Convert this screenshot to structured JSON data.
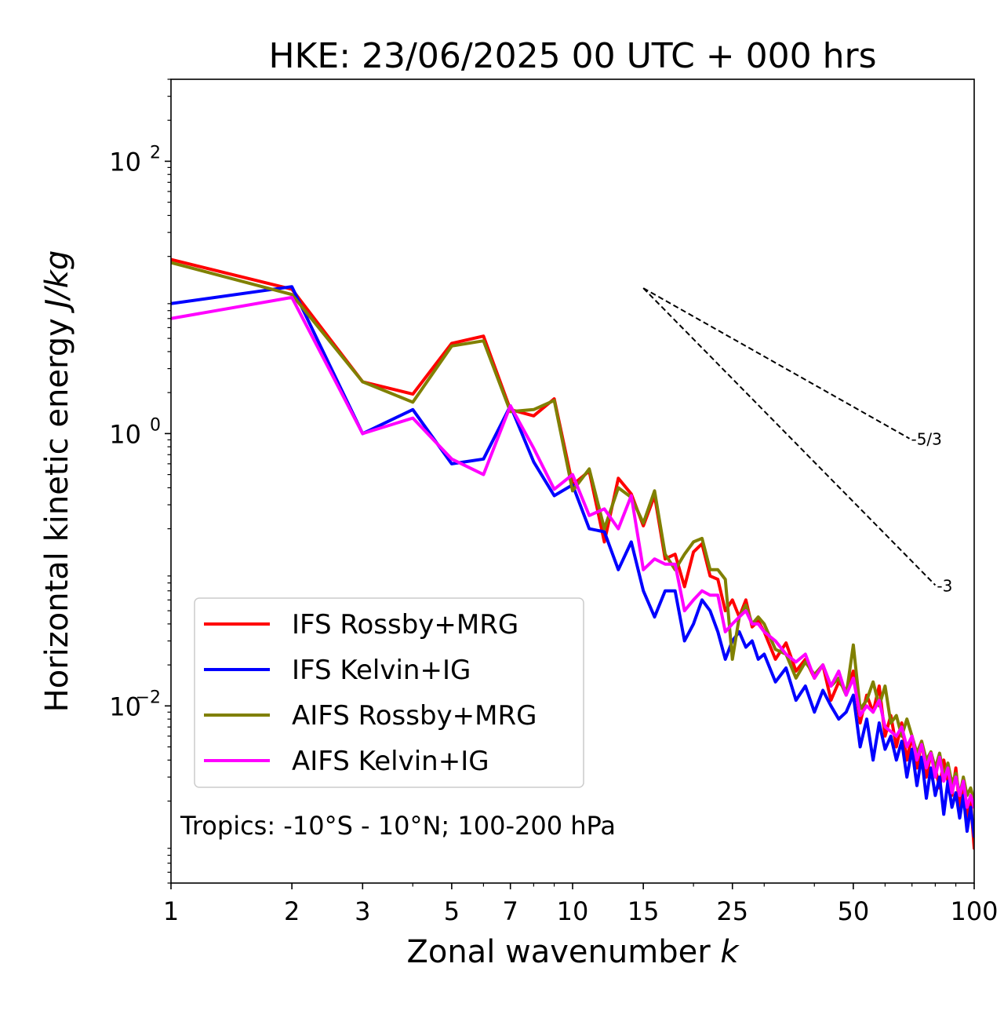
{
  "chart_data": {
    "type": "line",
    "title": "HKE: 23/06/2025 00 UTC + 000 hrs",
    "xlabel_main": "Zonal wavenumber ",
    "xlabel_var": "k",
    "ylabel_main": "Horizontal kinetic energy ",
    "ylabel_var": "J/kg",
    "x_scale": "log",
    "y_scale": "log",
    "xlim": [
      1,
      100
    ],
    "ylim": [
      0.0005,
      400
    ],
    "x_ticks": [
      {
        "value": 1,
        "label": "1"
      },
      {
        "value": 2,
        "label": "2"
      },
      {
        "value": 3,
        "label": "3"
      },
      {
        "value": 5,
        "label": "5"
      },
      {
        "value": 7,
        "label": "7"
      },
      {
        "value": 10,
        "label": "10"
      },
      {
        "value": 15,
        "label": "15"
      },
      {
        "value": 25,
        "label": "25"
      },
      {
        "value": 50,
        "label": "50"
      },
      {
        "value": 100,
        "label": "100"
      }
    ],
    "y_ticks": [
      {
        "value": 0.01,
        "base": "10",
        "exp": "−2"
      },
      {
        "value": 1,
        "base": "10",
        "exp": "0"
      },
      {
        "value": 100,
        "base": "10",
        "exp": "2"
      }
    ],
    "grid": false,
    "legend_position": "lower-left",
    "annotation": "Tropics: -10°S - 10°N; 100-200 hPa",
    "reference_slopes": [
      {
        "label": "-5/3",
        "slope": -1.6667,
        "x_start": 15,
        "y_start": 11.7,
        "x_end": 69
      },
      {
        "label": "-3",
        "slope": -3,
        "x_start": 15,
        "y_start": 11.7,
        "x_end": 80
      }
    ],
    "series": [
      {
        "name": "IFS Rossby+MRG",
        "color": "#ff0000",
        "x": [
          1,
          2,
          3,
          4,
          5,
          6,
          7,
          8,
          9,
          10,
          11,
          12,
          13,
          14,
          15,
          16,
          17,
          18,
          19,
          20,
          21,
          22,
          23,
          24,
          25,
          26,
          27,
          28,
          29,
          30,
          32,
          34,
          36,
          38,
          40,
          42,
          44,
          46,
          48,
          50,
          52,
          54,
          56,
          58,
          60,
          62,
          64,
          66,
          68,
          70,
          72,
          74,
          76,
          78,
          80,
          82,
          84,
          86,
          88,
          90,
          92,
          94,
          96,
          98,
          100
        ],
        "y": [
          19,
          11.5,
          2.4,
          1.95,
          4.6,
          5.2,
          1.5,
          1.35,
          1.8,
          0.42,
          0.53,
          0.16,
          0.47,
          0.36,
          0.21,
          0.35,
          0.12,
          0.13,
          0.075,
          0.135,
          0.155,
          0.09,
          0.085,
          0.05,
          0.06,
          0.045,
          0.06,
          0.038,
          0.042,
          0.035,
          0.022,
          0.029,
          0.018,
          0.022,
          0.016,
          0.02,
          0.011,
          0.015,
          0.013,
          0.018,
          0.0075,
          0.012,
          0.009,
          0.014,
          0.006,
          0.0085,
          0.005,
          0.0075,
          0.004,
          0.006,
          0.0035,
          0.0055,
          0.003,
          0.0045,
          0.0035,
          0.0025,
          0.004,
          0.0028,
          0.0022,
          0.0035,
          0.0018,
          0.0025,
          0.0015,
          0.002,
          0.0009
        ]
      },
      {
        "name": "IFS Kelvin+IG",
        "color": "#0000ff",
        "x": [
          1,
          2,
          3,
          4,
          5,
          6,
          7,
          8,
          9,
          10,
          11,
          12,
          13,
          14,
          15,
          16,
          17,
          18,
          19,
          20,
          21,
          22,
          23,
          24,
          25,
          26,
          27,
          28,
          29,
          30,
          32,
          34,
          36,
          38,
          40,
          42,
          44,
          46,
          48,
          50,
          52,
          54,
          56,
          58,
          60,
          62,
          64,
          66,
          68,
          70,
          72,
          74,
          76,
          78,
          80,
          82,
          84,
          86,
          88,
          90,
          92,
          94,
          96,
          98,
          100
        ],
        "y": [
          9.0,
          12.0,
          1.0,
          1.5,
          0.6,
          0.65,
          1.6,
          0.62,
          0.35,
          0.42,
          0.2,
          0.19,
          0.1,
          0.16,
          0.07,
          0.045,
          0.07,
          0.07,
          0.03,
          0.04,
          0.06,
          0.05,
          0.035,
          0.022,
          0.03,
          0.035,
          0.027,
          0.03,
          0.022,
          0.024,
          0.015,
          0.019,
          0.011,
          0.014,
          0.009,
          0.013,
          0.01,
          0.008,
          0.009,
          0.012,
          0.005,
          0.008,
          0.004,
          0.0075,
          0.0048,
          0.006,
          0.004,
          0.0055,
          0.003,
          0.0048,
          0.0026,
          0.0042,
          0.0021,
          0.0035,
          0.0022,
          0.003,
          0.0016,
          0.0028,
          0.0018,
          0.0023,
          0.0015,
          0.0022,
          0.0012,
          0.0018,
          0.0011
        ]
      },
      {
        "name": "AIFS Rossby+MRG",
        "color": "#808000",
        "x": [
          1,
          2,
          3,
          4,
          5,
          6,
          7,
          8,
          9,
          10,
          11,
          12,
          13,
          14,
          15,
          16,
          17,
          18,
          19,
          20,
          21,
          22,
          23,
          24,
          25,
          26,
          27,
          28,
          29,
          30,
          32,
          34,
          36,
          38,
          40,
          42,
          44,
          46,
          48,
          50,
          52,
          54,
          56,
          58,
          60,
          62,
          64,
          66,
          68,
          70,
          72,
          74,
          76,
          78,
          80,
          82,
          84,
          86,
          88,
          90,
          92,
          94,
          96,
          98,
          100
        ],
        "y": [
          18,
          10.5,
          2.4,
          1.7,
          4.4,
          4.8,
          1.45,
          1.5,
          1.75,
          0.38,
          0.55,
          0.2,
          0.4,
          0.34,
          0.22,
          0.38,
          0.13,
          0.1,
          0.13,
          0.16,
          0.17,
          0.1,
          0.1,
          0.085,
          0.022,
          0.045,
          0.055,
          0.04,
          0.045,
          0.04,
          0.026,
          0.024,
          0.016,
          0.021,
          0.017,
          0.02,
          0.014,
          0.016,
          0.012,
          0.028,
          0.0095,
          0.011,
          0.015,
          0.01,
          0.014,
          0.0075,
          0.0085,
          0.006,
          0.008,
          0.006,
          0.0045,
          0.0055,
          0.004,
          0.0046,
          0.0035,
          0.0045,
          0.003,
          0.0038,
          0.0027,
          0.0032,
          0.0022,
          0.003,
          0.0022,
          0.0025,
          0.002
        ]
      },
      {
        "name": "AIFS Kelvin+IG",
        "color": "#ff00ff",
        "x": [
          1,
          2,
          3,
          4,
          5,
          6,
          7,
          8,
          9,
          10,
          11,
          12,
          13,
          14,
          15,
          16,
          17,
          18,
          19,
          20,
          21,
          22,
          23,
          24,
          25,
          26,
          27,
          28,
          29,
          30,
          32,
          34,
          36,
          38,
          40,
          42,
          44,
          46,
          48,
          50,
          52,
          54,
          56,
          58,
          60,
          62,
          64,
          66,
          68,
          70,
          72,
          74,
          76,
          78,
          80,
          82,
          84,
          86,
          88,
          90,
          92,
          94,
          96,
          98,
          100
        ],
        "y": [
          7.0,
          10.0,
          1.0,
          1.3,
          0.65,
          0.5,
          1.6,
          0.78,
          0.39,
          0.5,
          0.25,
          0.28,
          0.2,
          0.35,
          0.1,
          0.12,
          0.11,
          0.11,
          0.05,
          0.06,
          0.07,
          0.065,
          0.065,
          0.035,
          0.04,
          0.045,
          0.05,
          0.04,
          0.04,
          0.035,
          0.03,
          0.024,
          0.021,
          0.024,
          0.016,
          0.02,
          0.014,
          0.018,
          0.012,
          0.016,
          0.0085,
          0.01,
          0.009,
          0.011,
          0.007,
          0.0065,
          0.006,
          0.007,
          0.005,
          0.006,
          0.004,
          0.0052,
          0.0035,
          0.0045,
          0.003,
          0.0042,
          0.0028,
          0.0035,
          0.0023,
          0.003,
          0.0022,
          0.0028,
          0.0018,
          0.0022,
          0.0018
        ]
      }
    ]
  }
}
